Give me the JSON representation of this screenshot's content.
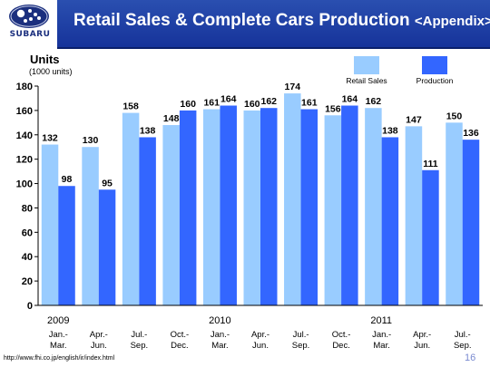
{
  "header": {
    "brand": "SUBARU",
    "title": "Retail Sales & Complete Cars Production",
    "title_suffix": "<Appendix>"
  },
  "axis": {
    "units_label": "Units",
    "units_sub": "(1000 units)"
  },
  "footer": {
    "url": "http://www.fhi.co.jp/english/ir/index.html",
    "page": "16"
  },
  "colors": {
    "header_bg": "#1e40a6",
    "retail_sales": "#99ccff",
    "production": "#3366ff"
  },
  "chart_data": {
    "type": "bar",
    "categories": [
      "Jan.-\nMar.",
      "Apr.-\nJun.",
      "Jul.-\nSep.",
      "Oct.-\nDec.",
      "Jan.-\nMar.",
      "Apr.-\nJun.",
      "Jul.-\nSep.",
      "Oct.-\nDec.",
      "Jan.-\nMar.",
      "Apr.-\nJun.",
      "Jul.-\nSep."
    ],
    "years": [
      {
        "label": "2009",
        "category_index": 0
      },
      {
        "label": "2010",
        "category_index": 4
      },
      {
        "label": "2011",
        "category_index": 8
      }
    ],
    "series": [
      {
        "name": "Retail Sales",
        "color": "#99ccff",
        "values": [
          132,
          130,
          158,
          148,
          161,
          160,
          174,
          156,
          162,
          147,
          150
        ]
      },
      {
        "name": "Production",
        "color": "#3366ff",
        "values": [
          98,
          95,
          138,
          160,
          164,
          162,
          161,
          164,
          138,
          111,
          136
        ]
      }
    ],
    "y_ticks": [
      0,
      20,
      40,
      60,
      80,
      100,
      120,
      140,
      160,
      180
    ],
    "ylim": [
      0,
      180
    ],
    "grid": false,
    "legend_position": "top-right"
  }
}
